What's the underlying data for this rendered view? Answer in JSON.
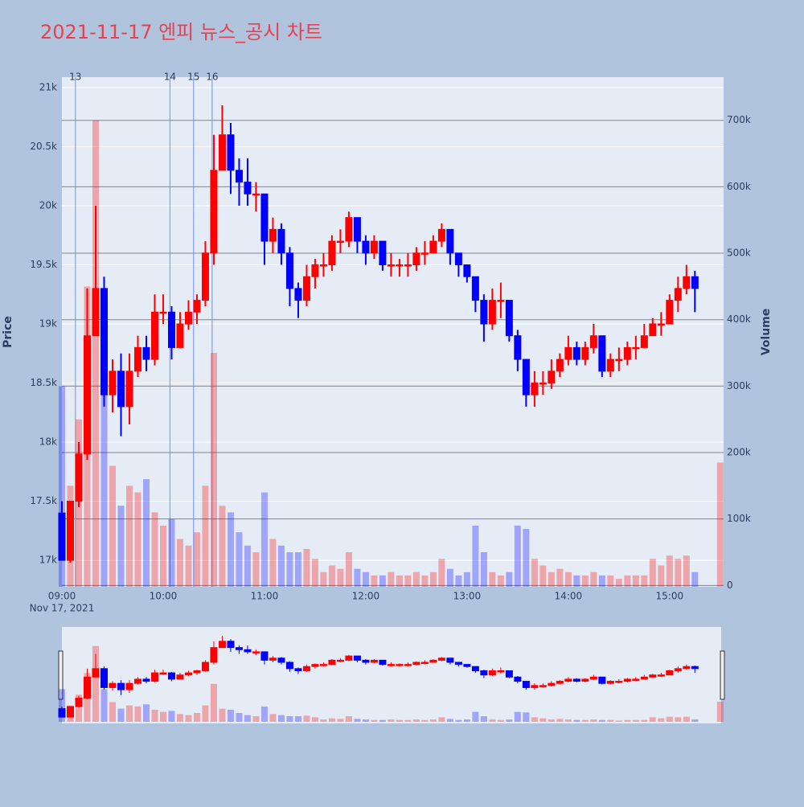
{
  "chart_data": {
    "type": "candlestick",
    "title": "2021-11-17 엔피 뉴스_공시 차트",
    "y_label": "Price",
    "y2_label": "Volume",
    "x_sublabel": "Nov 17, 2021",
    "xlim": [
      "2021-11-17 09:00",
      "2021-11-17 15:32"
    ],
    "xticks": [
      {
        "value": "2021-11-17 09:00",
        "label": "09:00"
      },
      {
        "value": "2021-11-17 10:00",
        "label": "10:00"
      },
      {
        "value": "2021-11-17 11:00",
        "label": "11:00"
      },
      {
        "value": "2021-11-17 12:00",
        "label": "12:00"
      },
      {
        "value": "2021-11-17 13:00",
        "label": "13:00"
      },
      {
        "value": "2021-11-17 14:00",
        "label": "14:00"
      },
      {
        "value": "2021-11-17 15:00",
        "label": "15:00"
      }
    ],
    "ylim": [
      16776,
      21088
    ],
    "yticks": [
      {
        "value": 17000,
        "label": "17k"
      },
      {
        "value": 17500,
        "label": "17.5k"
      },
      {
        "value": 18000,
        "label": "18k"
      },
      {
        "value": 18500,
        "label": "18.5k"
      },
      {
        "value": 19000,
        "label": "19k"
      },
      {
        "value": 19500,
        "label": "19.5k"
      },
      {
        "value": 20000,
        "label": "20k"
      },
      {
        "value": 20500,
        "label": "20.5k"
      },
      {
        "value": 21000,
        "label": "21k"
      }
    ],
    "y2lim": [
      -2000,
      765000
    ],
    "y2ticks": [
      0,
      {
        "value": 100000,
        "label": "100k"
      },
      {
        "value": 200000,
        "label": "200k"
      },
      {
        "value": 300000,
        "label": "300k"
      },
      {
        "value": 400000,
        "label": "400k"
      },
      {
        "value": 500000,
        "label": "500k"
      },
      {
        "value": 600000,
        "label": "600k"
      },
      {
        "value": 700000,
        "label": "700k"
      }
    ],
    "increasing_color": "#ff0000",
    "decreasing_color": "#0000ff",
    "vlines": [
      {
        "x": "2021-11-17 09:08",
        "label": "13"
      },
      {
        "x": "2021-11-17 10:04",
        "label": "14"
      },
      {
        "x": "2021-11-17 10:18",
        "label": "15"
      },
      {
        "x": "2021-11-17 10:29",
        "label": "16"
      }
    ],
    "x": [
      "2021-11-17 09:00",
      "2021-11-17 09:05",
      "2021-11-17 09:10",
      "2021-11-17 09:15",
      "2021-11-17 09:20",
      "2021-11-17 09:25",
      "2021-11-17 09:30",
      "2021-11-17 09:35",
      "2021-11-17 09:40",
      "2021-11-17 09:45",
      "2021-11-17 09:50",
      "2021-11-17 09:55",
      "2021-11-17 10:00",
      "2021-11-17 10:05",
      "2021-11-17 10:10",
      "2021-11-17 10:15",
      "2021-11-17 10:20",
      "2021-11-17 10:25",
      "2021-11-17 10:30",
      "2021-11-17 10:35",
      "2021-11-17 10:40",
      "2021-11-17 10:45",
      "2021-11-17 10:50",
      "2021-11-17 10:55",
      "2021-11-17 11:00",
      "2021-11-17 11:05",
      "2021-11-17 11:10",
      "2021-11-17 11:15",
      "2021-11-17 11:20",
      "2021-11-17 11:25",
      "2021-11-17 11:30",
      "2021-11-17 11:35",
      "2021-11-17 11:40",
      "2021-11-17 11:45",
      "2021-11-17 11:50",
      "2021-11-17 11:55",
      "2021-11-17 12:00",
      "2021-11-17 12:05",
      "2021-11-17 12:10",
      "2021-11-17 12:15",
      "2021-11-17 12:20",
      "2021-11-17 12:25",
      "2021-11-17 12:30",
      "2021-11-17 12:35",
      "2021-11-17 12:40",
      "2021-11-17 12:45",
      "2021-11-17 12:50",
      "2021-11-17 12:55",
      "2021-11-17 13:00",
      "2021-11-17 13:05",
      "2021-11-17 13:10",
      "2021-11-17 13:15",
      "2021-11-17 13:20",
      "2021-11-17 13:25",
      "2021-11-17 13:30",
      "2021-11-17 13:35",
      "2021-11-17 13:40",
      "2021-11-17 13:45",
      "2021-11-17 13:50",
      "2021-11-17 13:55",
      "2021-11-17 14:00",
      "2021-11-17 14:05",
      "2021-11-17 14:10",
      "2021-11-17 14:15",
      "2021-11-17 14:20",
      "2021-11-17 14:25",
      "2021-11-17 14:30",
      "2021-11-17 14:35",
      "2021-11-17 14:40",
      "2021-11-17 14:45",
      "2021-11-17 14:50",
      "2021-11-17 14:55",
      "2021-11-17 15:00",
      "2021-11-17 15:05",
      "2021-11-17 15:10",
      "2021-11-17 15:15",
      "2021-11-17 15:30"
    ],
    "open": [
      17400,
      17000,
      17500,
      17900,
      18900,
      19300,
      18400,
      18600,
      18300,
      18600,
      18800,
      18700,
      19100,
      19100,
      18800,
      19000,
      19100,
      19200,
      19600,
      20300,
      20600,
      20300,
      20200,
      20100,
      20100,
      19700,
      19800,
      19600,
      19300,
      19200,
      19400,
      19500,
      19500,
      19700,
      19700,
      19900,
      19700,
      19600,
      19700,
      19500,
      19500,
      19500,
      19500,
      19600,
      19600,
      19700,
      19800,
      19600,
      19500,
      19400,
      19200,
      19000,
      19200,
      19200,
      18900,
      18700,
      18400,
      18500,
      18500,
      18600,
      18700,
      18800,
      18700,
      18800,
      18900,
      18600,
      18700,
      18700,
      18800,
      18800,
      18900,
      19000,
      19000,
      19200,
      19300,
      19400,
      null
    ],
    "high": [
      17500,
      17500,
      18000,
      19300,
      20000,
      19400,
      18700,
      18750,
      18750,
      18900,
      18900,
      19250,
      19250,
      19150,
      19100,
      19200,
      19250,
      19700,
      20600,
      20850,
      20700,
      20400,
      20400,
      20200,
      20100,
      19900,
      19850,
      19650,
      19350,
      19500,
      19550,
      19600,
      19750,
      19800,
      19950,
      19900,
      19750,
      19750,
      19700,
      19600,
      19550,
      19600,
      19650,
      19700,
      19750,
      19850,
      19800,
      19600,
      19500,
      19400,
      19250,
      19300,
      19350,
      19200,
      18950,
      18700,
      18600,
      18600,
      18700,
      18750,
      18900,
      18850,
      18850,
      19000,
      18900,
      18750,
      18800,
      18850,
      18900,
      19000,
      19050,
      19100,
      19250,
      19400,
      19500,
      19450,
      null
    ],
    "low": [
      17000,
      16980,
      17450,
      17850,
      18900,
      18300,
      18250,
      18050,
      18150,
      18550,
      18600,
      18650,
      19000,
      18700,
      18800,
      18950,
      19000,
      19150,
      19500,
      20300,
      20100,
      20000,
      20000,
      19950,
      19500,
      19600,
      19500,
      19150,
      19050,
      19150,
      19300,
      19400,
      19450,
      19600,
      19650,
      19600,
      19500,
      19550,
      19450,
      19400,
      19400,
      19400,
      19450,
      19500,
      19600,
      19650,
      19500,
      19400,
      19350,
      19100,
      18850,
      18950,
      19050,
      18850,
      18600,
      18300,
      18300,
      18400,
      18450,
      18550,
      18650,
      18650,
      18650,
      18750,
      18550,
      18550,
      18600,
      18650,
      18700,
      18800,
      18900,
      18900,
      19000,
      19100,
      19250,
      19100,
      null
    ],
    "close": [
      17000,
      17500,
      17900,
      18900,
      19300,
      18400,
      18600,
      18300,
      18600,
      18800,
      18700,
      19100,
      19100,
      18800,
      19000,
      19100,
      19200,
      19600,
      20300,
      20600,
      20300,
      20200,
      20100,
      20100,
      19700,
      19800,
      19600,
      19300,
      19200,
      19400,
      19500,
      19500,
      19700,
      19700,
      19900,
      19700,
      19600,
      19700,
      19500,
      19500,
      19500,
      19500,
      19600,
      19600,
      19700,
      19800,
      19600,
      19500,
      19400,
      19200,
      19000,
      19200,
      19200,
      18900,
      18700,
      18400,
      18500,
      18500,
      18600,
      18700,
      18800,
      18700,
      18800,
      18900,
      18600,
      18700,
      18700,
      18800,
      18800,
      18900,
      19000,
      19000,
      19200,
      19300,
      19400,
      19300,
      null
    ],
    "volume": [
      300000,
      150000,
      250000,
      450000,
      700000,
      300000,
      180000,
      120000,
      150000,
      140000,
      160000,
      110000,
      90000,
      100000,
      70000,
      60000,
      80000,
      150000,
      350000,
      120000,
      110000,
      80000,
      60000,
      50000,
      140000,
      70000,
      60000,
      50000,
      50000,
      55000,
      40000,
      20000,
      30000,
      25000,
      50000,
      25000,
      20000,
      15000,
      15000,
      20000,
      15000,
      15000,
      20000,
      15000,
      20000,
      40000,
      25000,
      15000,
      20000,
      90000,
      50000,
      20000,
      15000,
      20000,
      90000,
      85000,
      40000,
      30000,
      20000,
      25000,
      20000,
      15000,
      15000,
      20000,
      15000,
      15000,
      10000,
      15000,
      15000,
      15000,
      40000,
      30000,
      45000,
      40000,
      45000,
      20000,
      185000
    ]
  }
}
